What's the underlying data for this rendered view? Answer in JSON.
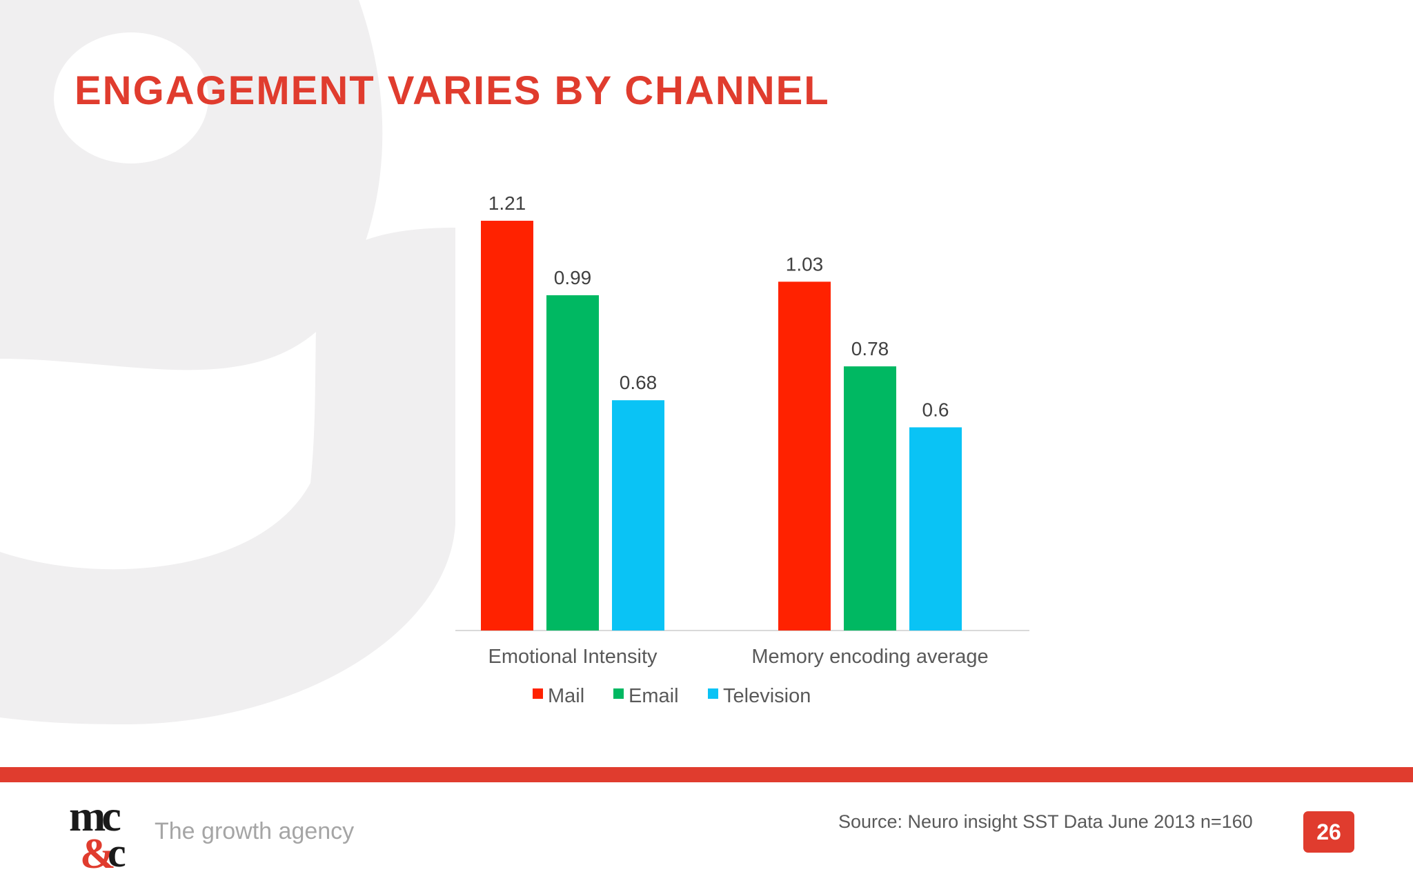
{
  "slide": {
    "title": "ENGAGEMENT VARIES BY CHANNEL",
    "tagline": "The growth agency",
    "source": "Source: Neuro insight SST Data June 2013 n=160",
    "page_number": "26",
    "logo_text": "mc&c",
    "accent_color": "#e03c2e"
  },
  "chart_data": {
    "type": "bar",
    "title": "",
    "xlabel": "",
    "ylabel": "",
    "categories": [
      "Emotional Intensity",
      "Memory encoding average"
    ],
    "series": [
      {
        "name": "Mail",
        "color": "#ff2200",
        "values": [
          1.21,
          1.03
        ],
        "labels": [
          "1.21",
          "1.03"
        ]
      },
      {
        "name": "Email",
        "color": "#00b862",
        "values": [
          0.99,
          0.78
        ],
        "labels": [
          "0.99",
          "0.78"
        ]
      },
      {
        "name": "Television",
        "color": "#0ac3f5",
        "values": [
          0.68,
          0.6
        ],
        "labels": [
          "0.68",
          "0.6"
        ]
      }
    ],
    "ylim": [
      0,
      1.21
    ],
    "grid": false,
    "legend": "bottom"
  }
}
